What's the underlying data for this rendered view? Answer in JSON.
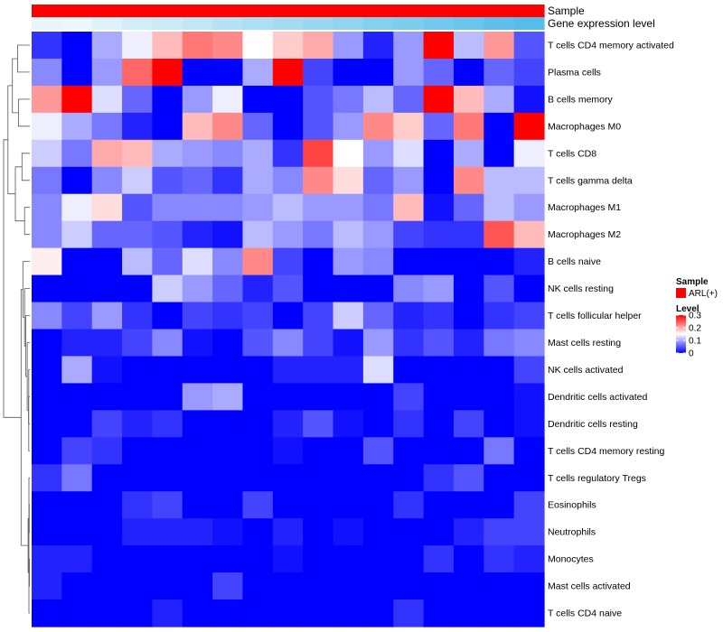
{
  "chart_data": {
    "type": "heatmap",
    "colorscale": {
      "low": "#0000ff",
      "mid": "#ffffff",
      "high": "#ff0000",
      "min": 0,
      "mid_value": 0.15,
      "max": 0.3
    },
    "annotation_tracks": [
      {
        "name": "Sample",
        "values": [
          "ARL(+)",
          "ARL(+)",
          "ARL(+)",
          "ARL(+)",
          "ARL(+)",
          "ARL(+)",
          "ARL(+)",
          "ARL(+)",
          "ARL(+)",
          "ARL(+)",
          "ARL(+)",
          "ARL(+)",
          "ARL(+)",
          "ARL(+)",
          "ARL(+)",
          "ARL(+)",
          "ARL(+)"
        ],
        "color": "#ff0000"
      },
      {
        "name": "Gene expression level",
        "gradient": [
          "#e8f6fb",
          "#eaf7fb",
          "#def2f9",
          "#d4eef8",
          "#cbebf7",
          "#c1e7f6",
          "#b6e3f4",
          "#acdff3",
          "#a3dcf2",
          "#9ad8f1",
          "#90d4f0",
          "#86d0ef",
          "#7ccdee",
          "#72c9ed",
          "#69c5ec",
          "#5fc1eb",
          "#56bdea"
        ]
      }
    ],
    "rows": [
      "T cells CD4 memory activated",
      "Plasma cells",
      "B cells memory",
      "Macrophages M0",
      "T cells CD8",
      "T cells gamma delta",
      "Macrophages M1",
      "Macrophages M2",
      "B cells naive",
      "NK cells resting",
      "T cells follicular helper",
      "Mast cells resting",
      "NK cells activated",
      "Dendritic cells activated",
      "Dendritic cells resting",
      "T cells CD4 memory resting",
      "T cells regulatory  Tregs",
      "Eosinophils",
      "Neutrophils",
      "Monocytes",
      "Mast cells activated",
      "T cells CD4 naive"
    ],
    "values": [
      [
        0.03,
        0.0,
        0.1,
        0.14,
        0.19,
        0.23,
        0.22,
        0.15,
        0.18,
        0.2,
        0.09,
        0.02,
        0.09,
        0.3,
        0.11,
        0.21,
        0.05
      ],
      [
        0.08,
        0.0,
        0.09,
        0.24,
        0.3,
        0.0,
        0.0,
        0.1,
        0.3,
        0.04,
        0.0,
        0.0,
        0.09,
        0.06,
        0.0,
        0.06,
        0.04
      ],
      [
        0.21,
        0.3,
        0.13,
        0.06,
        0.0,
        0.09,
        0.14,
        0.0,
        0.0,
        0.05,
        0.07,
        0.11,
        0.06,
        0.3,
        0.19,
        0.1,
        0.01
      ],
      [
        0.14,
        0.1,
        0.07,
        0.02,
        0.0,
        0.19,
        0.22,
        0.06,
        0.0,
        0.05,
        0.09,
        0.22,
        0.18,
        0.06,
        0.23,
        0.0,
        0.3
      ],
      [
        0.12,
        0.07,
        0.2,
        0.19,
        0.1,
        0.09,
        0.08,
        0.1,
        0.03,
        0.26,
        0.15,
        0.09,
        0.13,
        0.0,
        0.1,
        0.0,
        0.14
      ],
      [
        0.07,
        0.0,
        0.08,
        0.12,
        0.05,
        0.06,
        0.03,
        0.1,
        0.08,
        0.22,
        0.17,
        0.06,
        0.09,
        0.0,
        0.22,
        0.11,
        0.11
      ],
      [
        0.08,
        0.14,
        0.17,
        0.05,
        0.08,
        0.08,
        0.08,
        0.09,
        0.11,
        0.09,
        0.09,
        0.07,
        0.19,
        0.01,
        0.06,
        0.11,
        0.09
      ],
      [
        0.08,
        0.12,
        0.06,
        0.06,
        0.05,
        0.02,
        0.01,
        0.11,
        0.09,
        0.07,
        0.11,
        0.09,
        0.04,
        0.03,
        0.03,
        0.25,
        0.19
      ],
      [
        0.16,
        0.0,
        0.0,
        0.11,
        0.06,
        0.13,
        0.08,
        0.22,
        0.04,
        0.0,
        0.09,
        0.08,
        0.0,
        0.0,
        0.0,
        0.0,
        0.02
      ],
      [
        0.0,
        0.0,
        0.0,
        0.0,
        0.12,
        0.09,
        0.06,
        0.02,
        0.05,
        0.0,
        0.0,
        0.0,
        0.08,
        0.09,
        0.0,
        0.05,
        0.0
      ],
      [
        0.08,
        0.04,
        0.09,
        0.03,
        0.0,
        0.04,
        0.03,
        0.04,
        0.0,
        0.04,
        0.12,
        0.06,
        0.02,
        0.03,
        0.0,
        0.03,
        0.04
      ],
      [
        0.0,
        0.02,
        0.02,
        0.04,
        0.08,
        0.01,
        0.0,
        0.05,
        0.08,
        0.04,
        0.01,
        0.09,
        0.03,
        0.05,
        0.02,
        0.07,
        0.08
      ],
      [
        0.0,
        0.1,
        0.01,
        0.0,
        0.0,
        0.0,
        0.0,
        0.0,
        0.02,
        0.02,
        0.02,
        0.13,
        0.0,
        0.0,
        0.0,
        0.0,
        0.04
      ],
      [
        0.0,
        0.0,
        0.0,
        0.0,
        0.0,
        0.09,
        0.1,
        0.0,
        0.0,
        0.0,
        0.0,
        0.0,
        0.04,
        0.0,
        0.0,
        0.0,
        0.01
      ],
      [
        0.0,
        0.0,
        0.04,
        0.02,
        0.03,
        0.0,
        0.0,
        0.0,
        0.02,
        0.05,
        0.01,
        0.0,
        0.03,
        0.0,
        0.04,
        0.0,
        0.01
      ],
      [
        0.0,
        0.04,
        0.03,
        0.0,
        0.0,
        0.0,
        0.0,
        0.0,
        0.01,
        0.0,
        0.0,
        0.05,
        0.0,
        0.0,
        0.0,
        0.07,
        0.0
      ],
      [
        0.03,
        0.07,
        0.0,
        0.0,
        0.0,
        0.0,
        0.0,
        0.0,
        0.0,
        0.0,
        0.0,
        0.0,
        0.0,
        0.03,
        0.05,
        0.0,
        0.0
      ],
      [
        0.0,
        0.0,
        0.0,
        0.03,
        0.04,
        0.0,
        0.0,
        0.04,
        0.0,
        0.0,
        0.0,
        0.0,
        0.03,
        0.0,
        0.0,
        0.0,
        0.04
      ],
      [
        0.0,
        0.0,
        0.0,
        0.02,
        0.02,
        0.02,
        0.01,
        0.0,
        0.02,
        0.0,
        0.01,
        0.0,
        0.0,
        0.0,
        0.02,
        0.04,
        0.04
      ],
      [
        0.02,
        0.02,
        0.0,
        0.0,
        0.0,
        0.0,
        0.0,
        0.0,
        0.01,
        0.0,
        0.0,
        0.0,
        0.0,
        0.03,
        0.0,
        0.03,
        0.02
      ],
      [
        0.02,
        0.0,
        0.0,
        0.0,
        0.0,
        0.0,
        0.04,
        0.0,
        0.0,
        0.0,
        0.0,
        0.0,
        0.0,
        0.0,
        0.0,
        0.0,
        0.0
      ],
      [
        0.0,
        0.0,
        0.0,
        0.0,
        0.02,
        0.0,
        0.0,
        0.0,
        0.0,
        0.0,
        0.0,
        0.0,
        0.03,
        0.0,
        0.0,
        0.0,
        0.0
      ]
    ],
    "dendrogram": {
      "merges": [
        [
          -20,
          -21
        ],
        [
          -18,
          -19
        ],
        [
          -17,
          -22
        ],
        [
          -13,
          -16
        ],
        [
          -14,
          -15
        ],
        [
          1,
          2
        ],
        [
          4,
          5
        ],
        [
          -12,
          7
        ],
        [
          3,
          6
        ],
        [
          -11,
          8
        ],
        [
          -10,
          10
        ],
        [
          -9,
          11
        ],
        [
          9,
          12
        ],
        [
          -7,
          -8
        ],
        [
          -5,
          -6
        ],
        [
          -3,
          -4
        ],
        [
          -1,
          -2
        ],
        [
          14,
          15
        ],
        [
          16,
          17
        ],
        [
          18,
          19
        ],
        [
          13,
          20
        ]
      ],
      "heights": [
        0.01,
        0.015,
        0.02,
        0.025,
        0.03,
        0.04,
        0.045,
        0.06,
        0.07,
        0.09,
        0.12,
        0.16,
        0.2,
        0.12,
        0.18,
        0.26,
        0.28,
        0.33,
        0.4,
        0.5,
        0.6
      ]
    },
    "legend": {
      "sample_title": "Sample",
      "sample_entry": "ARL(+)",
      "level_title": "Level",
      "level_ticks": [
        0,
        0.1,
        0.2,
        0.3
      ],
      "level_tick_labels": [
        "0",
        "0.1",
        "0.2",
        "0.3"
      ]
    }
  }
}
